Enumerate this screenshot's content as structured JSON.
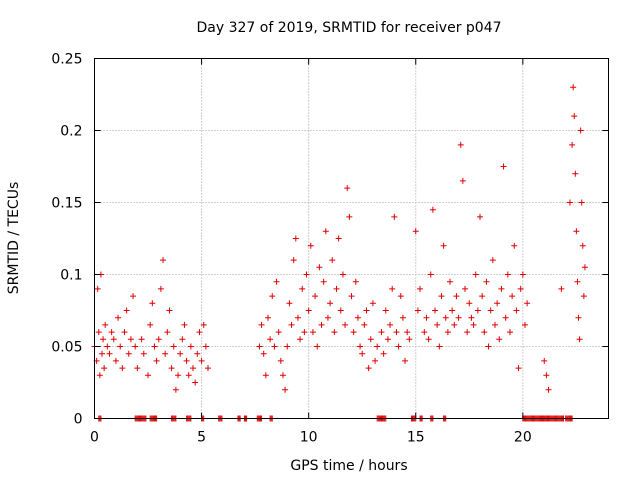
{
  "chart_data": {
    "type": "scatter",
    "title": "Day 327 of 2019, SRMTID for receiver p047",
    "xlabel": "GPS time / hours",
    "ylabel": "SRMTID / TECUs",
    "xlim": [
      0,
      24
    ],
    "ylim": [
      0,
      0.25
    ],
    "grid": true,
    "x_ticks": [
      0,
      5,
      10,
      15,
      20
    ],
    "x_tick_labels": [
      "0",
      "5",
      "10",
      "15",
      "20"
    ],
    "y_ticks": [
      0,
      0.05,
      0.1,
      0.15,
      0.2,
      0.25
    ],
    "y_tick_labels": [
      "0",
      "0.05",
      "0.1",
      "0.15",
      "0.2",
      "0.25"
    ],
    "marker": "plus",
    "color": "#e00000",
    "series": [
      {
        "name": "SRMTID",
        "points": [
          [
            0.0,
            0.05
          ],
          [
            0.1,
            0.04
          ],
          [
            0.15,
            0.09
          ],
          [
            0.2,
            0.06
          ],
          [
            0.25,
            0.03
          ],
          [
            0.3,
            0.1
          ],
          [
            0.35,
            0.045
          ],
          [
            0.4,
            0.055
          ],
          [
            0.45,
            0.035
          ],
          [
            0.5,
            0.065
          ],
          [
            0.6,
            0.05
          ],
          [
            0.7,
            0.045
          ],
          [
            0.8,
            0.06
          ],
          [
            0.9,
            0.055
          ],
          [
            1.0,
            0.04
          ],
          [
            1.1,
            0.07
          ],
          [
            1.2,
            0.05
          ],
          [
            1.3,
            0.035
          ],
          [
            1.4,
            0.06
          ],
          [
            1.5,
            0.075
          ],
          [
            1.6,
            0.045
          ],
          [
            1.7,
            0.055
          ],
          [
            1.8,
            0.085
          ],
          [
            1.9,
            0.05
          ],
          [
            2.0,
            0.035
          ],
          [
            2.2,
            0.055
          ],
          [
            2.3,
            0.045
          ],
          [
            2.5,
            0.03
          ],
          [
            2.6,
            0.065
          ],
          [
            2.7,
            0.08
          ],
          [
            2.8,
            0.05
          ],
          [
            2.9,
            0.04
          ],
          [
            3.0,
            0.055
          ],
          [
            3.1,
            0.09
          ],
          [
            3.2,
            0.11
          ],
          [
            3.3,
            0.045
          ],
          [
            3.4,
            0.06
          ],
          [
            3.5,
            0.075
          ],
          [
            3.6,
            0.035
          ],
          [
            3.7,
            0.05
          ],
          [
            3.8,
            0.02
          ],
          [
            3.9,
            0.03
          ],
          [
            4.0,
            0.045
          ],
          [
            4.1,
            0.055
          ],
          [
            4.2,
            0.065
          ],
          [
            4.3,
            0.04
          ],
          [
            4.4,
            0.03
          ],
          [
            4.5,
            0.05
          ],
          [
            4.6,
            0.035
          ],
          [
            4.7,
            0.025
          ],
          [
            4.8,
            0.045
          ],
          [
            4.9,
            0.06
          ],
          [
            5.0,
            0.04
          ],
          [
            5.1,
            0.065
          ],
          [
            5.2,
            0.05
          ],
          [
            5.3,
            0.035
          ],
          [
            7.7,
            0.05
          ],
          [
            7.8,
            0.065
          ],
          [
            7.9,
            0.045
          ],
          [
            8.0,
            0.03
          ],
          [
            8.1,
            0.07
          ],
          [
            8.2,
            0.055
          ],
          [
            8.3,
            0.085
          ],
          [
            8.4,
            0.05
          ],
          [
            8.5,
            0.095
          ],
          [
            8.6,
            0.06
          ],
          [
            8.7,
            0.04
          ],
          [
            8.8,
            0.03
          ],
          [
            8.9,
            0.02
          ],
          [
            9.0,
            0.05
          ],
          [
            9.1,
            0.08
          ],
          [
            9.2,
            0.065
          ],
          [
            9.3,
            0.11
          ],
          [
            9.4,
            0.125
          ],
          [
            9.5,
            0.07
          ],
          [
            9.6,
            0.055
          ],
          [
            9.7,
            0.09
          ],
          [
            9.8,
            0.06
          ],
          [
            9.9,
            0.1
          ],
          [
            10.0,
            0.075
          ],
          [
            10.1,
            0.12
          ],
          [
            10.2,
            0.06
          ],
          [
            10.3,
            0.085
          ],
          [
            10.4,
            0.05
          ],
          [
            10.5,
            0.105
          ],
          [
            10.6,
            0.065
          ],
          [
            10.7,
            0.095
          ],
          [
            10.8,
            0.13
          ],
          [
            10.9,
            0.07
          ],
          [
            11.0,
            0.08
          ],
          [
            11.1,
            0.11
          ],
          [
            11.2,
            0.06
          ],
          [
            11.3,
            0.09
          ],
          [
            11.4,
            0.125
          ],
          [
            11.5,
            0.075
          ],
          [
            11.6,
            0.1
          ],
          [
            11.7,
            0.065
          ],
          [
            11.8,
            0.16
          ],
          [
            11.9,
            0.14
          ],
          [
            12.0,
            0.085
          ],
          [
            12.1,
            0.06
          ],
          [
            12.2,
            0.095
          ],
          [
            12.3,
            0.07
          ],
          [
            12.4,
            0.05
          ],
          [
            12.5,
            0.045
          ],
          [
            12.6,
            0.065
          ],
          [
            12.7,
            0.075
          ],
          [
            12.8,
            0.035
          ],
          [
            12.9,
            0.055
          ],
          [
            13.0,
            0.08
          ],
          [
            13.1,
            0.04
          ],
          [
            13.2,
            0.05
          ],
          [
            13.4,
            0.06
          ],
          [
            13.5,
            0.045
          ],
          [
            13.6,
            0.075
          ],
          [
            13.7,
            0.055
          ],
          [
            13.8,
            0.065
          ],
          [
            13.9,
            0.09
          ],
          [
            14.0,
            0.14
          ],
          [
            14.1,
            0.06
          ],
          [
            14.2,
            0.05
          ],
          [
            14.3,
            0.085
          ],
          [
            14.4,
            0.07
          ],
          [
            14.5,
            0.04
          ],
          [
            14.6,
            0.06
          ],
          [
            14.7,
            0.055
          ],
          [
            15.0,
            0.13
          ],
          [
            15.1,
            0.075
          ],
          [
            15.2,
            0.09
          ],
          [
            15.4,
            0.06
          ],
          [
            15.5,
            0.07
          ],
          [
            15.6,
            0.055
          ],
          [
            15.7,
            0.1
          ],
          [
            15.8,
            0.145
          ],
          [
            15.9,
            0.075
          ],
          [
            16.0,
            0.065
          ],
          [
            16.1,
            0.05
          ],
          [
            16.2,
            0.085
          ],
          [
            16.3,
            0.12
          ],
          [
            16.4,
            0.07
          ],
          [
            16.5,
            0.06
          ],
          [
            16.6,
            0.095
          ],
          [
            16.7,
            0.075
          ],
          [
            16.8,
            0.065
          ],
          [
            16.9,
            0.085
          ],
          [
            17.0,
            0.07
          ],
          [
            17.1,
            0.19
          ],
          [
            17.2,
            0.165
          ],
          [
            17.3,
            0.09
          ],
          [
            17.4,
            0.06
          ],
          [
            17.5,
            0.08
          ],
          [
            17.6,
            0.07
          ],
          [
            17.7,
            0.065
          ],
          [
            17.8,
            0.1
          ],
          [
            17.9,
            0.075
          ],
          [
            18.0,
            0.14
          ],
          [
            18.1,
            0.085
          ],
          [
            18.2,
            0.06
          ],
          [
            18.3,
            0.095
          ],
          [
            18.4,
            0.05
          ],
          [
            18.5,
            0.075
          ],
          [
            18.6,
            0.11
          ],
          [
            18.7,
            0.065
          ],
          [
            18.8,
            0.08
          ],
          [
            18.9,
            0.055
          ],
          [
            19.0,
            0.09
          ],
          [
            19.1,
            0.175
          ],
          [
            19.2,
            0.07
          ],
          [
            19.3,
            0.1
          ],
          [
            19.4,
            0.06
          ],
          [
            19.5,
            0.085
          ],
          [
            19.6,
            0.12
          ],
          [
            19.7,
            0.075
          ],
          [
            19.8,
            0.035
          ],
          [
            19.9,
            0.09
          ],
          [
            20.0,
            0.1
          ],
          [
            20.1,
            0.065
          ],
          [
            20.2,
            0.08
          ],
          [
            21.0,
            0.04
          ],
          [
            21.1,
            0.03
          ],
          [
            21.2,
            0.02
          ],
          [
            21.8,
            0.09
          ],
          [
            22.2,
            0.15
          ],
          [
            22.3,
            0.19
          ],
          [
            22.35,
            0.23
          ],
          [
            22.4,
            0.21
          ],
          [
            22.45,
            0.17
          ],
          [
            22.5,
            0.13
          ],
          [
            22.55,
            0.095
          ],
          [
            22.6,
            0.07
          ],
          [
            22.65,
            0.055
          ],
          [
            22.7,
            0.2
          ],
          [
            22.75,
            0.15
          ],
          [
            22.8,
            0.12
          ],
          [
            22.85,
            0.085
          ],
          [
            22.9,
            0.105
          ]
        ],
        "zero_segments": [
          [
            0.2,
            0.3
          ],
          [
            1.9,
            2.4
          ],
          [
            2.6,
            2.9
          ],
          [
            3.6,
            3.8
          ],
          [
            4.3,
            4.5
          ],
          [
            5.0,
            5.1
          ],
          [
            5.8,
            5.95
          ],
          [
            6.7,
            6.8
          ],
          [
            7.0,
            7.1
          ],
          [
            7.6,
            7.8
          ],
          [
            8.2,
            8.3
          ],
          [
            13.2,
            13.6
          ],
          [
            14.8,
            15.0
          ],
          [
            15.2,
            15.3
          ],
          [
            15.7,
            15.8
          ],
          [
            16.3,
            16.4
          ],
          [
            20.0,
            20.1
          ],
          [
            20.1,
            21.9
          ],
          [
            20.9,
            21.0
          ],
          [
            22.0,
            22.3
          ]
        ]
      }
    ]
  }
}
